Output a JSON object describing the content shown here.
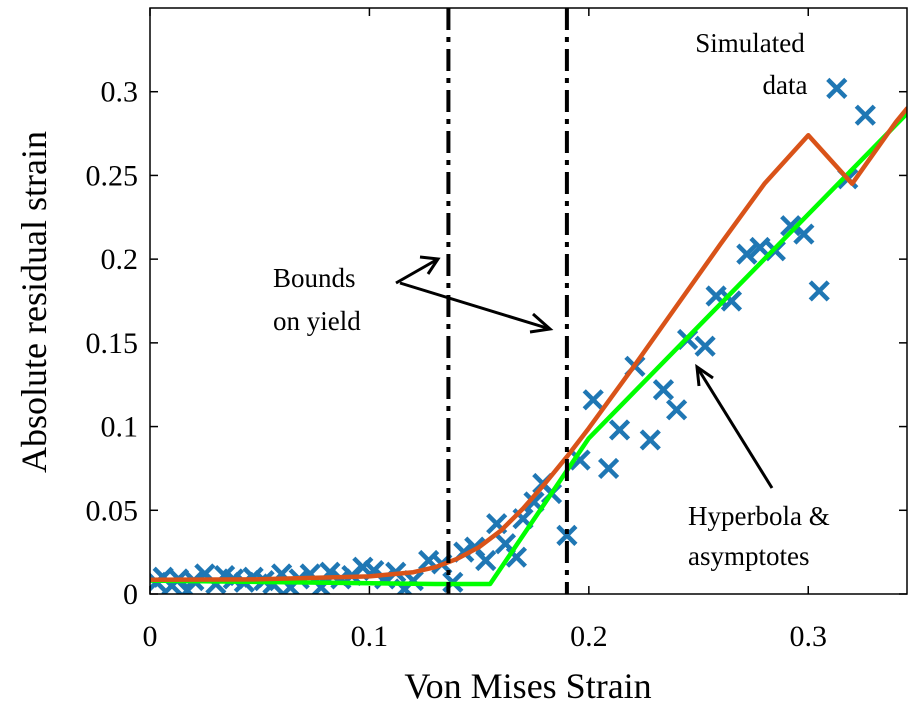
{
  "chart_data": {
    "type": "scatter",
    "title": "",
    "xlabel": "Von Mises Strain",
    "ylabel": "Absolute residual strain",
    "xlim": [
      0,
      0.345
    ],
    "ylim": [
      0,
      0.35
    ],
    "xticks": [
      0,
      0.1,
      0.2,
      0.3
    ],
    "xtick_labels": [
      "0",
      "0.1",
      "0.2",
      "0.3"
    ],
    "yticks": [
      0,
      0.05,
      0.1,
      0.15,
      0.2,
      0.25,
      0.3
    ],
    "ytick_labels": [
      "0",
      "0.05",
      "0.1",
      "0.15",
      "0.2",
      "0.25",
      "0.3"
    ],
    "grid": false,
    "legend": "none",
    "yield_bounds": [
      0.136,
      0.19
    ],
    "series": [
      {
        "kind": "scatter",
        "marker": "x",
        "color": "#1f77b4",
        "points": [
          [
            0.003,
            0.007
          ],
          [
            0.006,
            0.01
          ],
          [
            0.01,
            0.005
          ],
          [
            0.013,
            0.009
          ],
          [
            0.017,
            0.002
          ],
          [
            0.02,
            0.008
          ],
          [
            0.025,
            0.012
          ],
          [
            0.03,
            0.006
          ],
          [
            0.034,
            0.011
          ],
          [
            0.038,
            0.009
          ],
          [
            0.043,
            0.007
          ],
          [
            0.047,
            0.01
          ],
          [
            0.052,
            0.008
          ],
          [
            0.056,
            0.006
          ],
          [
            0.06,
            0.012
          ],
          [
            0.064,
            0.004
          ],
          [
            0.068,
            0.009
          ],
          [
            0.073,
            0.012
          ],
          [
            0.078,
            0.004
          ],
          [
            0.082,
            0.013
          ],
          [
            0.087,
            0.009
          ],
          [
            0.092,
            0.011
          ],
          [
            0.097,
            0.016
          ],
          [
            0.102,
            0.014
          ],
          [
            0.107,
            0.009
          ],
          [
            0.112,
            0.013
          ],
          [
            0.116,
            0.003
          ],
          [
            0.12,
            0.008
          ],
          [
            0.127,
            0.02
          ],
          [
            0.133,
            0.018
          ],
          [
            0.138,
            0.007
          ],
          [
            0.143,
            0.025
          ],
          [
            0.148,
            0.028
          ],
          [
            0.153,
            0.02
          ],
          [
            0.158,
            0.042
          ],
          [
            0.162,
            0.03
          ],
          [
            0.167,
            0.022
          ],
          [
            0.17,
            0.045
          ],
          [
            0.175,
            0.055
          ],
          [
            0.179,
            0.066
          ],
          [
            0.183,
            0.06
          ],
          [
            0.19,
            0.035
          ],
          [
            0.196,
            0.08
          ],
          [
            0.202,
            0.116
          ],
          [
            0.209,
            0.075
          ],
          [
            0.214,
            0.098
          ],
          [
            0.221,
            0.136
          ],
          [
            0.228,
            0.092
          ],
          [
            0.234,
            0.122
          ],
          [
            0.24,
            0.11
          ],
          [
            0.245,
            0.152
          ],
          [
            0.253,
            0.148
          ],
          [
            0.258,
            0.178
          ],
          [
            0.265,
            0.175
          ],
          [
            0.272,
            0.203
          ],
          [
            0.278,
            0.207
          ],
          [
            0.285,
            0.205
          ],
          [
            0.292,
            0.22
          ],
          [
            0.298,
            0.215
          ],
          [
            0.305,
            0.181
          ],
          [
            0.313,
            0.302
          ],
          [
            0.318,
            0.248
          ],
          [
            0.326,
            0.286
          ]
        ]
      },
      {
        "kind": "line",
        "name": "",
        "color": "#d95319",
        "points": [
          [
            0,
            0.0085
          ],
          [
            0.05,
            0.0088
          ],
          [
            0.1,
            0.0105
          ],
          [
            0.12,
            0.013
          ],
          [
            0.13,
            0.016
          ],
          [
            0.14,
            0.021
          ],
          [
            0.15,
            0.028
          ],
          [
            0.16,
            0.038
          ],
          [
            0.17,
            0.051
          ],
          [
            0.18,
            0.066
          ],
          [
            0.19,
            0.082
          ],
          [
            0.2,
            0.099
          ],
          [
            0.21,
            0.117
          ],
          [
            0.22,
            0.135
          ],
          [
            0.24,
            0.172
          ],
          [
            0.26,
            0.209
          ],
          [
            0.28,
            0.245
          ],
          [
            0.3,
            0.274
          ],
          [
            0.32,
            0.245
          ],
          [
            0.34,
            0.282
          ],
          [
            0.345,
            0.29
          ]
        ]
      },
      {
        "kind": "line",
        "name": "",
        "color": "#00ff00",
        "points": [
          [
            0,
            0.008
          ],
          [
            0.13,
            0.006
          ],
          [
            0.155,
            0.006
          ],
          [
            0.2,
            0.093
          ],
          [
            0.345,
            0.287
          ]
        ]
      }
    ],
    "annotations": [
      {
        "lines": [
          "Simulated",
          "data"
        ]
      },
      {
        "lines": [
          "Bounds",
          "on yield"
        ]
      },
      {
        "lines": [
          "Hyperbola &",
          "asymptotes"
        ]
      }
    ]
  }
}
